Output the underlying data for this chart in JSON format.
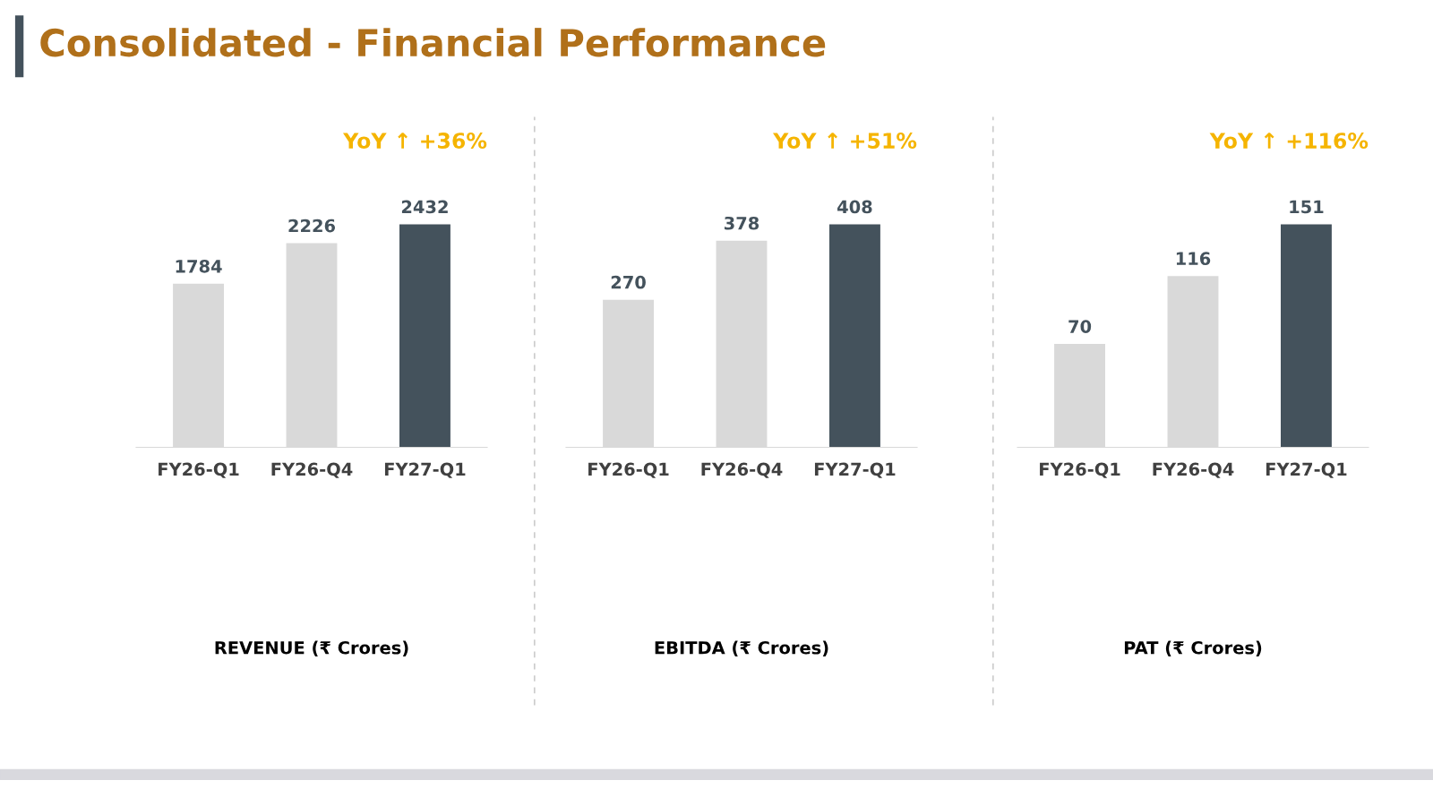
{
  "chart_data": [
    {
      "type": "bar",
      "title": "Consolidated - Financial Performance",
      "xlabel": "REVENUE (₹ Crores)",
      "categories": [
        "FY26-Q1",
        "FY26-Q4",
        "FY27-Q1"
      ],
      "values": [
        1784,
        2226,
        2432
      ],
      "colors": [
        "#d9d9d9",
        "#d9d9d9",
        "#44525c"
      ],
      "data_labels": true,
      "annotations": [
        "YoY ↑ +36%"
      ]
    },
    {
      "type": "bar",
      "xlabel": "EBITDA (₹ Crores)",
      "categories": [
        "FY26-Q1",
        "FY26-Q4",
        "FY27-Q1"
      ],
      "values": [
        270,
        378,
        408
      ],
      "colors": [
        "#d9d9d9",
        "#d9d9d9",
        "#44525c"
      ],
      "data_labels": true,
      "annotations": [
        "YoY ↑ +51%"
      ]
    },
    {
      "type": "bar",
      "xlabel": "PAT (₹ Crores)",
      "categories": [
        "FY26-Q1",
        "FY26-Q4",
        "FY27-Q1"
      ],
      "values": [
        70,
        116,
        151
      ],
      "colors": [
        "#d9d9d9",
        "#d9d9d9",
        "#44525c"
      ],
      "data_labels": true,
      "annotations": [
        "YoY ↑ +116%"
      ]
    }
  ]
}
